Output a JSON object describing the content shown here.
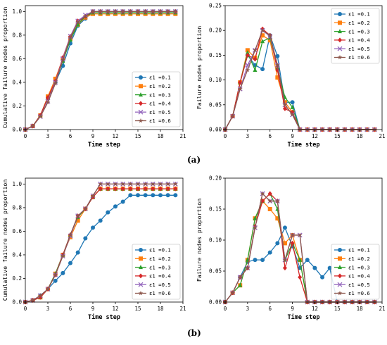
{
  "panel_labels": [
    "(a)",
    "(b)"
  ],
  "chart_data": [
    {
      "type": "line",
      "xlabel": "Time step",
      "ylabel": "Cumulative failure nodes proportion",
      "xlim": [
        0,
        21
      ],
      "ylim": [
        0,
        1.05
      ],
      "xticks": [
        0,
        3,
        6,
        9,
        12,
        15,
        18,
        21
      ],
      "yticks": [
        0,
        0.2,
        0.4,
        0.6,
        0.8,
        1.0
      ],
      "ytick_labels": [
        "0.0",
        "0.2",
        "0.4",
        "0.6",
        "0.8",
        "1.0"
      ],
      "legend": "bottom-right",
      "x": [
        0,
        1,
        2,
        3,
        4,
        5,
        6,
        7,
        8,
        9,
        10,
        11,
        12,
        13,
        14,
        15,
        16,
        17,
        18,
        19,
        20
      ],
      "series": [
        {
          "name": "ε1 =0.1",
          "values": [
            0,
            0.03,
            0.12,
            0.27,
            0.4,
            0.54,
            0.73,
            0.88,
            0.94,
            1.0,
            1.0,
            1.0,
            1.0,
            1.0,
            1.0,
            1.0,
            1.0,
            1.0,
            1.0,
            1.0,
            1.0
          ]
        },
        {
          "name": "ε1 =0.2",
          "values": [
            0,
            0.03,
            0.12,
            0.28,
            0.43,
            0.6,
            0.77,
            0.89,
            0.95,
            0.98,
            0.98,
            0.98,
            0.98,
            0.98,
            0.98,
            0.98,
            0.98,
            0.98,
            0.98,
            0.98,
            0.98
          ]
        },
        {
          "name": "ε1 =0.3",
          "values": [
            0,
            0.03,
            0.12,
            0.27,
            0.4,
            0.58,
            0.76,
            0.89,
            0.96,
            0.99,
            0.99,
            0.99,
            0.99,
            0.99,
            0.99,
            0.99,
            0.99,
            0.99,
            0.99,
            0.99,
            0.99
          ]
        },
        {
          "name": "ε1 =0.4",
          "values": [
            0,
            0.03,
            0.12,
            0.27,
            0.41,
            0.61,
            0.79,
            0.92,
            0.96,
            1.0,
            1.0,
            1.0,
            1.0,
            1.0,
            1.0,
            1.0,
            1.0,
            1.0,
            1.0,
            1.0,
            1.0
          ]
        },
        {
          "name": "ε1 =0.5",
          "values": [
            0,
            0.03,
            0.11,
            0.24,
            0.4,
            0.6,
            0.79,
            0.92,
            0.97,
            1.0,
            1.0,
            1.0,
            1.0,
            1.0,
            1.0,
            1.0,
            1.0,
            1.0,
            1.0,
            1.0,
            1.0
          ]
        },
        {
          "name": "ε1 =0.6",
          "values": [
            0,
            0.03,
            0.11,
            0.23,
            0.39,
            0.59,
            0.78,
            0.91,
            0.96,
            1.0,
            1.0,
            1.0,
            1.0,
            1.0,
            1.0,
            1.0,
            1.0,
            1.0,
            1.0,
            1.0,
            1.0
          ]
        }
      ]
    },
    {
      "type": "line",
      "xlabel": "Time step",
      "ylabel": "Failure nodes proportion",
      "xlim": [
        0,
        21
      ],
      "ylim": [
        0,
        0.25
      ],
      "xticks": [
        0,
        3,
        6,
        9,
        12,
        15,
        18,
        21
      ],
      "yticks": [
        0,
        0.05,
        0.1,
        0.15,
        0.2,
        0.25
      ],
      "ytick_labels": [
        "0.00",
        "0.05",
        "0.10",
        "0.15",
        "0.20",
        "0.25"
      ],
      "legend": "top-right",
      "x": [
        0,
        1,
        2,
        3,
        4,
        5,
        6,
        7,
        8,
        9,
        10,
        11,
        12,
        13,
        14,
        15,
        16,
        17,
        18,
        19,
        20
      ],
      "series": [
        {
          "name": "ε1 =0.1",
          "values": [
            0,
            0.027,
            0.095,
            0.15,
            0.13,
            0.122,
            0.19,
            0.148,
            0.055,
            0.055,
            0,
            0,
            0,
            0,
            0,
            0,
            0,
            0,
            0,
            0,
            0
          ]
        },
        {
          "name": "ε1 =0.2",
          "values": [
            0,
            0.027,
            0.095,
            0.16,
            0.145,
            0.19,
            0.18,
            0.105,
            0.055,
            0.035,
            0,
            0,
            0,
            0,
            0,
            0,
            0,
            0,
            0,
            0,
            0
          ]
        },
        {
          "name": "ε1 =0.3",
          "values": [
            0,
            0.027,
            0.095,
            0.155,
            0.12,
            0.178,
            0.185,
            0.125,
            0.065,
            0.045,
            0,
            0,
            0,
            0,
            0,
            0,
            0,
            0,
            0,
            0,
            0
          ]
        },
        {
          "name": "ε1 =0.4",
          "values": [
            0,
            0.027,
            0.095,
            0.15,
            0.142,
            0.203,
            0.19,
            0.12,
            0.042,
            0.035,
            0,
            0,
            0,
            0,
            0,
            0,
            0,
            0,
            0,
            0,
            0
          ]
        },
        {
          "name": "ε1 =0.5",
          "values": [
            0,
            0.027,
            0.082,
            0.13,
            0.16,
            0.2,
            0.188,
            0.13,
            0.05,
            0.03,
            0,
            0,
            0,
            0,
            0,
            0,
            0,
            0,
            0,
            0,
            0
          ]
        },
        {
          "name": "ε1 =0.6",
          "values": [
            0,
            0.027,
            0.082,
            0.12,
            0.16,
            0.2,
            0.19,
            0.13,
            0.05,
            0.03,
            0,
            0,
            0,
            0,
            0,
            0,
            0,
            0,
            0,
            0,
            0
          ]
        }
      ]
    },
    {
      "type": "line",
      "xlabel": "Time step",
      "ylabel": "Cumulative failure nodes proportion",
      "xlim": [
        0,
        21
      ],
      "ylim": [
        0,
        1.05
      ],
      "xticks": [
        0,
        3,
        6,
        9,
        12,
        15,
        18,
        21
      ],
      "yticks": [
        0,
        0.2,
        0.4,
        0.6,
        0.8,
        1.0
      ],
      "ytick_labels": [
        "0.0",
        "0.2",
        "0.4",
        "0.6",
        "0.8",
        "1.0"
      ],
      "legend": "bottom-right",
      "x": [
        0,
        1,
        2,
        3,
        4,
        5,
        6,
        7,
        8,
        9,
        10,
        11,
        12,
        13,
        14,
        15,
        16,
        17,
        18,
        19,
        20
      ],
      "series": [
        {
          "name": "ε1 =0.1",
          "values": [
            0,
            0.015,
            0.055,
            0.11,
            0.18,
            0.245,
            0.33,
            0.42,
            0.54,
            0.63,
            0.69,
            0.76,
            0.81,
            0.85,
            0.905,
            0.905,
            0.905,
            0.905,
            0.905,
            0.905,
            0.905
          ]
        },
        {
          "name": "ε1 =0.2",
          "values": [
            0,
            0.015,
            0.04,
            0.11,
            0.24,
            0.4,
            0.55,
            0.69,
            0.79,
            0.89,
            0.96,
            0.96,
            0.96,
            0.96,
            0.96,
            0.96,
            0.96,
            0.96,
            0.96,
            0.96,
            0.96
          ]
        },
        {
          "name": "ε1 =0.3",
          "values": [
            0,
            0.015,
            0.04,
            0.11,
            0.24,
            0.4,
            0.57,
            0.72,
            0.79,
            0.89,
            0.96,
            0.96,
            0.96,
            0.96,
            0.96,
            0.96,
            0.96,
            0.96,
            0.96,
            0.96,
            0.96
          ]
        },
        {
          "name": "ε1 =0.4",
          "values": [
            0,
            0.015,
            0.04,
            0.11,
            0.23,
            0.4,
            0.57,
            0.73,
            0.79,
            0.89,
            0.96,
            0.96,
            0.96,
            0.96,
            0.96,
            0.96,
            0.96,
            0.96,
            0.96,
            0.96,
            0.96
          ]
        },
        {
          "name": "ε1 =0.5",
          "values": [
            0,
            0.015,
            0.055,
            0.11,
            0.23,
            0.39,
            0.56,
            0.73,
            0.79,
            0.9,
            1.0,
            1.0,
            1.0,
            1.0,
            1.0,
            1.0,
            1.0,
            1.0,
            1.0,
            1.0,
            1.0
          ]
        },
        {
          "name": "ε1 =0.6",
          "values": [
            0,
            0.015,
            0.055,
            0.11,
            0.23,
            0.39,
            0.57,
            0.73,
            0.79,
            0.9,
            1.0,
            1.0,
            1.0,
            1.0,
            1.0,
            1.0,
            1.0,
            1.0,
            1.0,
            1.0,
            1.0
          ]
        }
      ]
    },
    {
      "type": "line",
      "xlabel": "Time step",
      "ylabel": "Failure nodes proportion",
      "xlim": [
        0,
        21
      ],
      "ylim": [
        0,
        0.2
      ],
      "xticks": [
        0,
        3,
        6,
        9,
        12,
        15,
        18,
        21
      ],
      "yticks": [
        0,
        0.05,
        0.1,
        0.15,
        0.2
      ],
      "ytick_labels": [
        "0.00",
        "0.05",
        "0.10",
        "0.15",
        "0.20"
      ],
      "legend": "bottom-right",
      "x": [
        0,
        1,
        2,
        3,
        4,
        5,
        6,
        7,
        8,
        9,
        10,
        11,
        12,
        13,
        14,
        15,
        16,
        17,
        18,
        19,
        20
      ],
      "series": [
        {
          "name": "ε1 =0.1",
          "values": [
            0,
            0.015,
            0.04,
            0.065,
            0.068,
            0.068,
            0.08,
            0.095,
            0.12,
            0.09,
            0.055,
            0.068,
            0.055,
            0.04,
            0.055,
            0,
            0,
            0,
            0,
            0,
            0
          ]
        },
        {
          "name": "ε1 =0.2",
          "values": [
            0,
            0.015,
            0.027,
            0.068,
            0.135,
            0.163,
            0.15,
            0.135,
            0.095,
            0.108,
            0.068,
            0,
            0,
            0,
            0,
            0,
            0,
            0,
            0,
            0,
            0
          ]
        },
        {
          "name": "ε1 =0.3",
          "values": [
            0,
            0.015,
            0.027,
            0.068,
            0.135,
            0.163,
            0.175,
            0.15,
            0.068,
            0.095,
            0.068,
            0,
            0,
            0,
            0,
            0,
            0,
            0,
            0,
            0,
            0
          ]
        },
        {
          "name": "ε1 =0.4",
          "values": [
            0,
            0.015,
            0.04,
            0.055,
            0.122,
            0.163,
            0.175,
            0.163,
            0.055,
            0.095,
            0.04,
            0,
            0,
            0,
            0,
            0,
            0,
            0,
            0,
            0,
            0
          ]
        },
        {
          "name": "ε1 =0.5",
          "values": [
            0,
            0.015,
            0.04,
            0.055,
            0.12,
            0.175,
            0.163,
            0.163,
            0.068,
            0.108,
            0.108,
            0,
            0,
            0,
            0,
            0,
            0,
            0,
            0,
            0,
            0
          ]
        },
        {
          "name": "ε1 =0.6",
          "values": [
            0,
            0.015,
            0.04,
            0.055,
            0.12,
            0.175,
            0.163,
            0.163,
            0.068,
            0.108,
            0.108,
            0,
            0,
            0,
            0,
            0,
            0,
            0,
            0,
            0,
            0
          ]
        }
      ]
    }
  ],
  "style": {
    "series_colors": [
      "#1f77b4",
      "#ff7f0e",
      "#2ca02c",
      "#d62728",
      "#9467bd",
      "#8c564b"
    ],
    "series_markers": [
      "circle",
      "square",
      "triangle",
      "diamond",
      "x",
      "star"
    ],
    "axis_color": "#000000"
  }
}
